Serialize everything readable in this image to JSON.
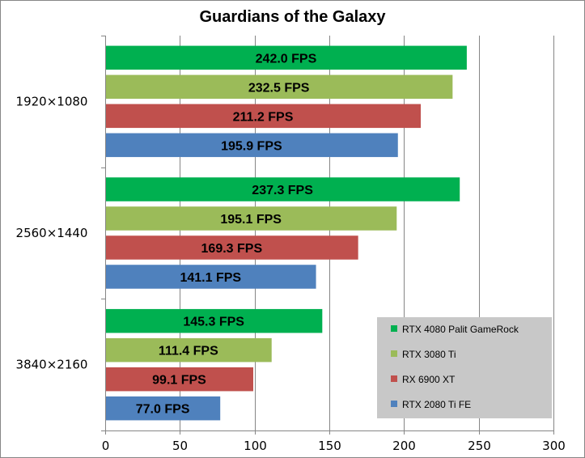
{
  "chart_data": {
    "type": "bar",
    "orientation": "horizontal",
    "title": "Guardians of the Galaxy",
    "categories": [
      "1920×1080",
      "2560×1440",
      "3840×2160"
    ],
    "series": [
      {
        "name": "RTX 4080 Palit GameRock",
        "color": "#00b050",
        "values": [
          242.0,
          237.3,
          145.3
        ],
        "labels": [
          "242.0 FPS",
          "237.3 FPS",
          "145.3 FPS"
        ]
      },
      {
        "name": "RTX 3080 Ti",
        "color": "#9bbb59",
        "values": [
          232.5,
          195.1,
          111.4
        ],
        "labels": [
          "232.5 FPS",
          "195.1 FPS",
          "111.4 FPS"
        ]
      },
      {
        "name": "RX 6900 XT",
        "color": "#c0504d",
        "values": [
          211.2,
          169.3,
          99.1
        ],
        "labels": [
          "211.2 FPS",
          "169.3 FPS",
          "99.1 FPS"
        ]
      },
      {
        "name": "RTX 2080 Ti FE",
        "color": "#4f81bd",
        "values": [
          195.9,
          141.1,
          77.0
        ],
        "labels": [
          "195.9 FPS",
          "141.1 FPS",
          "77.0 FPS"
        ]
      }
    ],
    "xlim": [
      0,
      300
    ],
    "xticks": [
      "0",
      "50",
      "100",
      "150",
      "200",
      "250",
      "300"
    ],
    "xlabel": "",
    "ylabel": "",
    "grid": true,
    "legend_position": "bottom-right"
  }
}
